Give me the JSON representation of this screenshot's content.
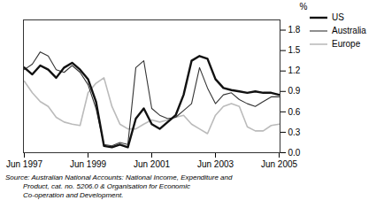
{
  "chart_data": {
    "type": "line",
    "ylabel": "%",
    "categories": [
      "Jun 1997",
      null,
      null,
      null,
      null,
      null,
      null,
      null,
      "Jun 1999",
      null,
      null,
      null,
      null,
      null,
      null,
      null,
      "Jun 2001",
      null,
      null,
      null,
      null,
      null,
      null,
      null,
      "Jun 2003",
      null,
      null,
      null,
      null,
      null,
      null,
      null,
      "Jun 2005"
    ],
    "series": [
      {
        "name": "US",
        "color": "#111111",
        "values": [
          1.25,
          1.15,
          1.28,
          1.22,
          1.1,
          1.25,
          1.32,
          1.22,
          1.08,
          0.75,
          0.1,
          0.08,
          0.12,
          0.08,
          0.5,
          0.65,
          0.42,
          0.35,
          0.45,
          0.55,
          0.85,
          1.35,
          1.42,
          1.38,
          1.08,
          0.95,
          0.92,
          0.9,
          0.88,
          0.9,
          0.88,
          0.88,
          0.85
        ]
      },
      {
        "name": "Australia",
        "color": "#333333",
        "values": [
          1.22,
          1.3,
          1.48,
          1.42,
          1.22,
          1.18,
          1.28,
          1.18,
          1.0,
          0.65,
          0.12,
          0.1,
          0.15,
          0.12,
          1.25,
          1.35,
          0.65,
          0.55,
          0.5,
          0.52,
          0.62,
          0.72,
          1.25,
          0.95,
          0.72,
          0.85,
          0.88,
          0.78,
          0.72,
          0.68,
          0.75,
          0.82,
          0.82
        ]
      },
      {
        "name": "Europe",
        "color": "#bbbbbb",
        "values": [
          1.05,
          0.88,
          0.75,
          0.68,
          0.52,
          0.45,
          0.42,
          0.4,
          0.88,
          1.02,
          1.1,
          0.68,
          0.42,
          0.35,
          0.35,
          0.42,
          0.48,
          0.45,
          0.48,
          0.52,
          0.55,
          0.42,
          0.35,
          0.28,
          0.55,
          0.68,
          0.72,
          0.68,
          0.38,
          0.32,
          0.32,
          0.4,
          0.42
        ]
      }
    ],
    "ylim": [
      0.0,
      1.95
    ],
    "yticks": [
      {
        "value": 0,
        "label": "0.0"
      },
      0.3,
      0.6,
      0.9,
      1.2,
      1.5,
      1.8
    ],
    "legend": "right",
    "annotations": [
      "Source: Australian National Accounts: National Income, Expenditure and",
      "         Product, cat. no. 5206.0 & Organisation for Economic",
      "         Co-operation and Development."
    ]
  }
}
